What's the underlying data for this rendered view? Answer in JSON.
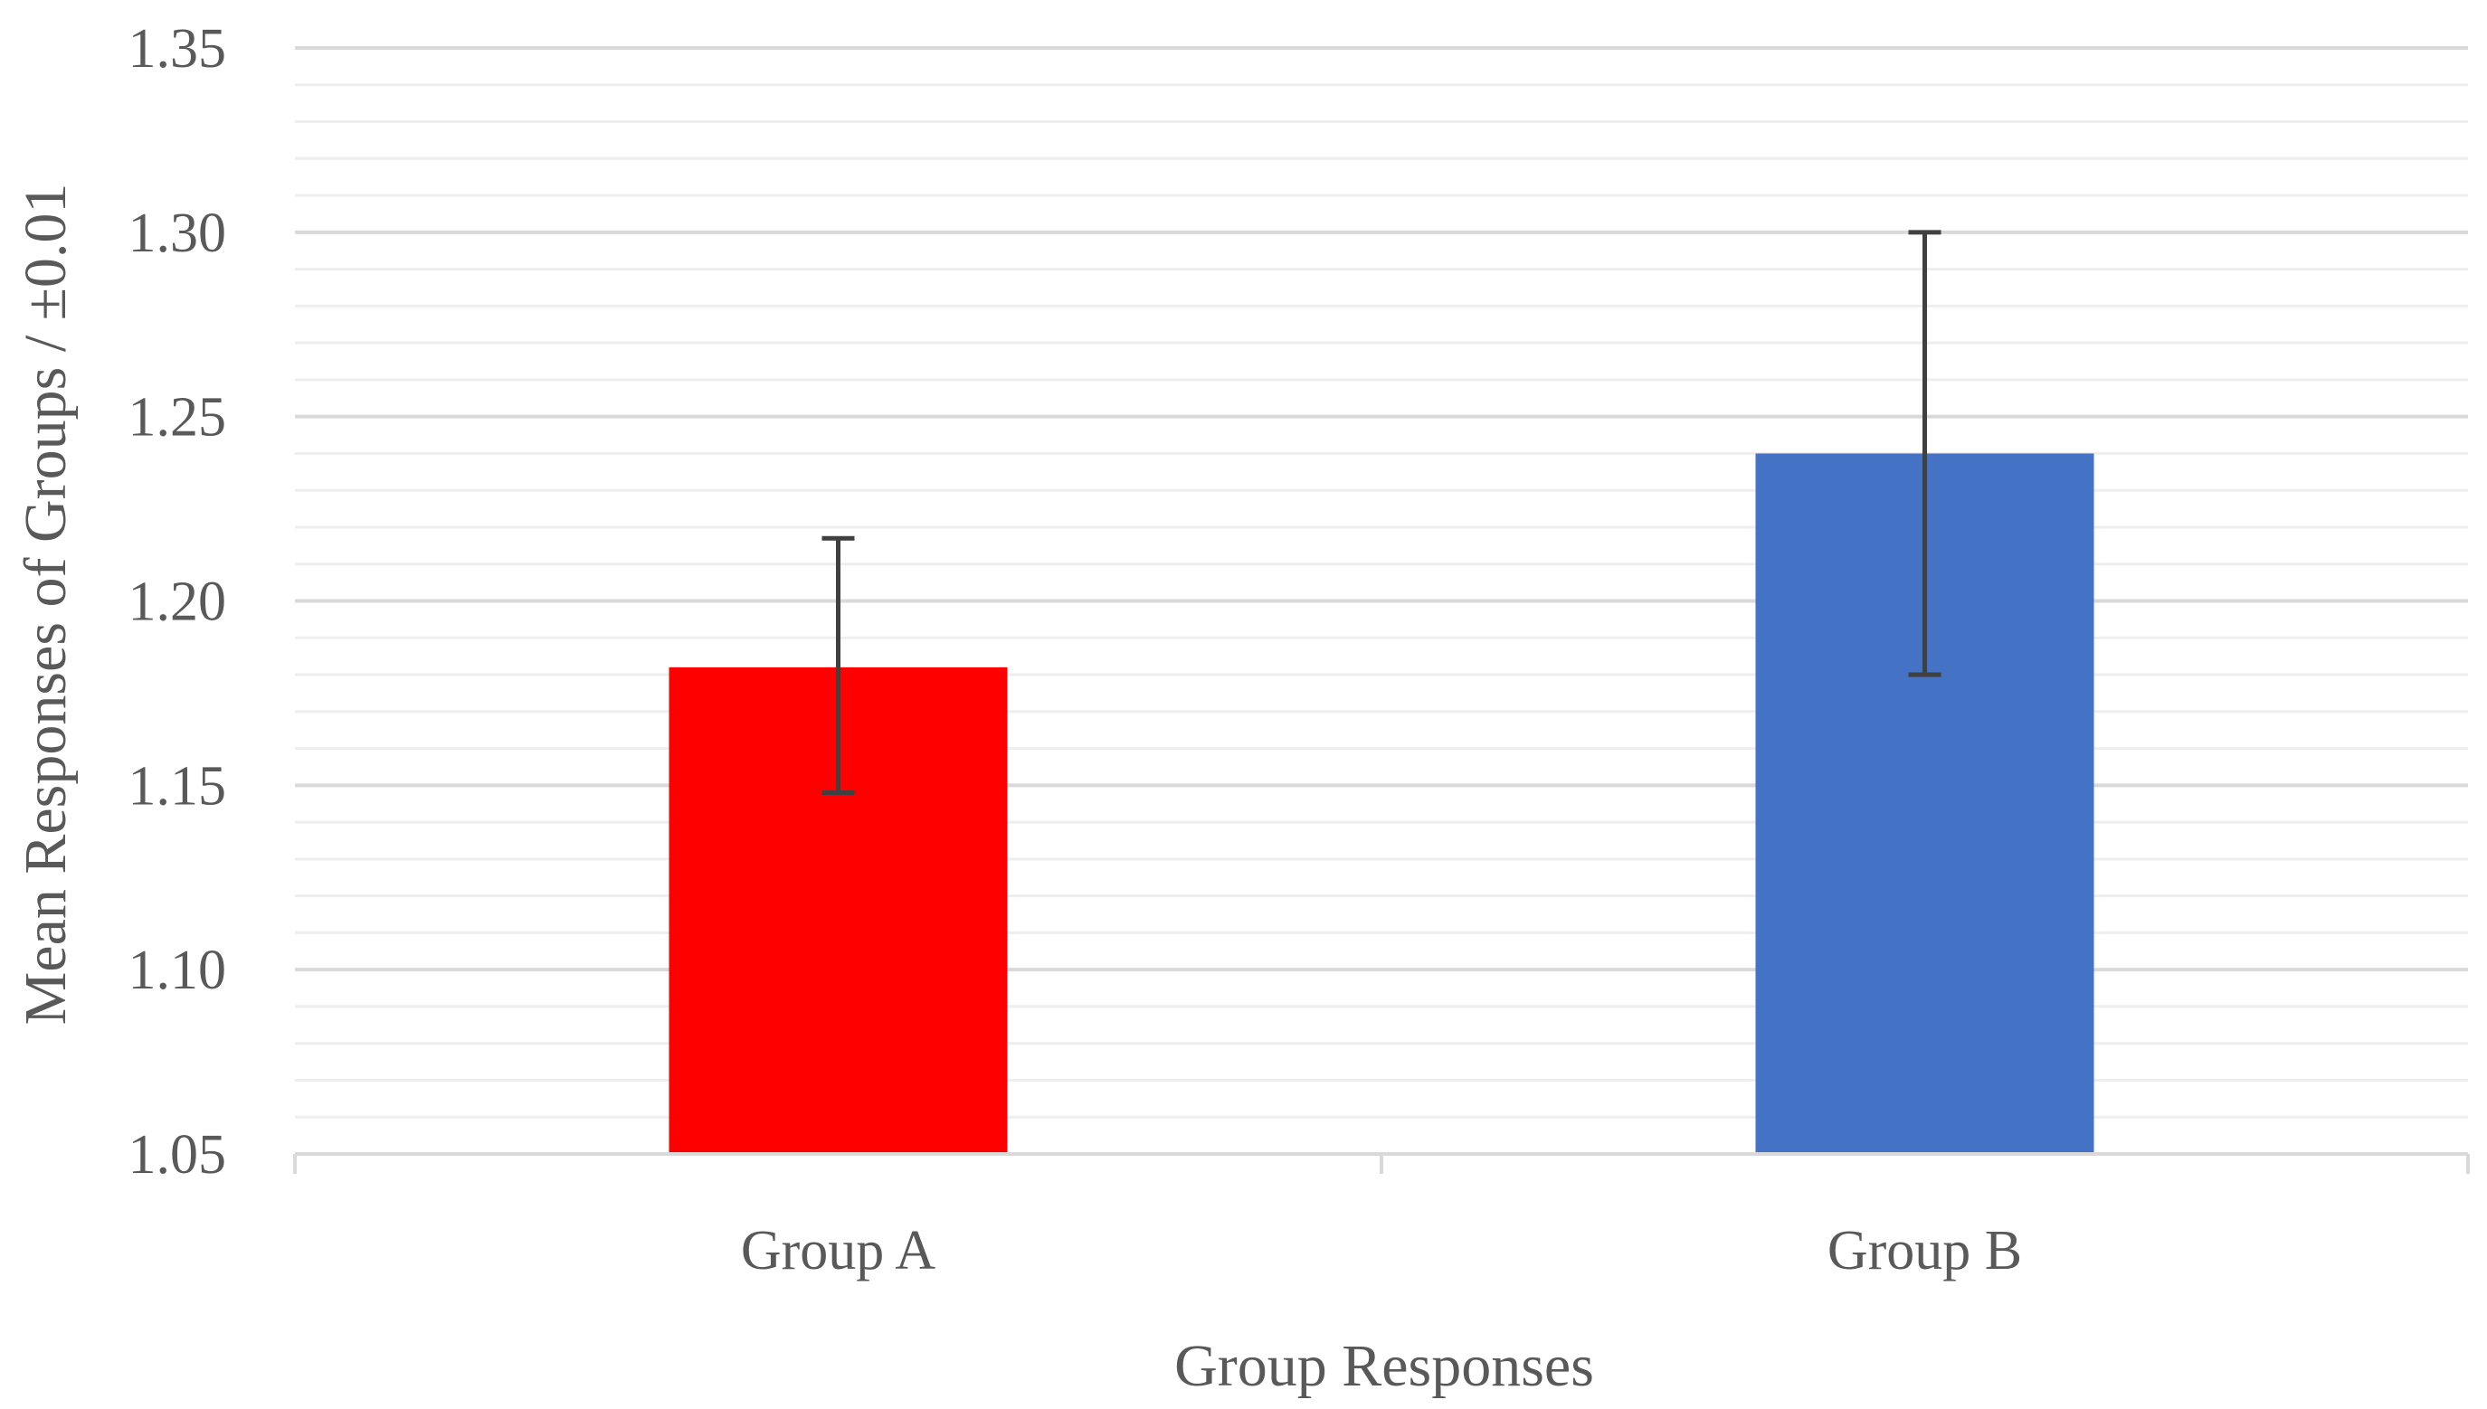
{
  "chart_data": {
    "type": "bar",
    "categories": [
      "Group A",
      "Group B"
    ],
    "values": [
      1.182,
      1.24
    ],
    "error_bars": [
      {
        "low": 1.148,
        "high": 1.217
      },
      {
        "low": 1.18,
        "high": 1.3
      }
    ],
    "bar_colors": [
      "#FF0000",
      "#4472C4"
    ],
    "title": "",
    "xlabel": "Group Responses",
    "ylabel": "Mean Responses of Groups / ±0.01",
    "ylim": [
      1.05,
      1.35
    ],
    "y_major_step": 0.05,
    "y_minor_step": 0.01,
    "y_ticks": [
      "1.05",
      "1.10",
      "1.15",
      "1.20",
      "1.25",
      "1.30",
      "1.35"
    ],
    "grid": true,
    "legend": "none",
    "colors": {
      "major_grid": "#D9D9D9",
      "minor_grid": "#EEEEEE",
      "axis": "#D9D9D9",
      "error_bar": "#404040",
      "text": "#595959"
    }
  }
}
